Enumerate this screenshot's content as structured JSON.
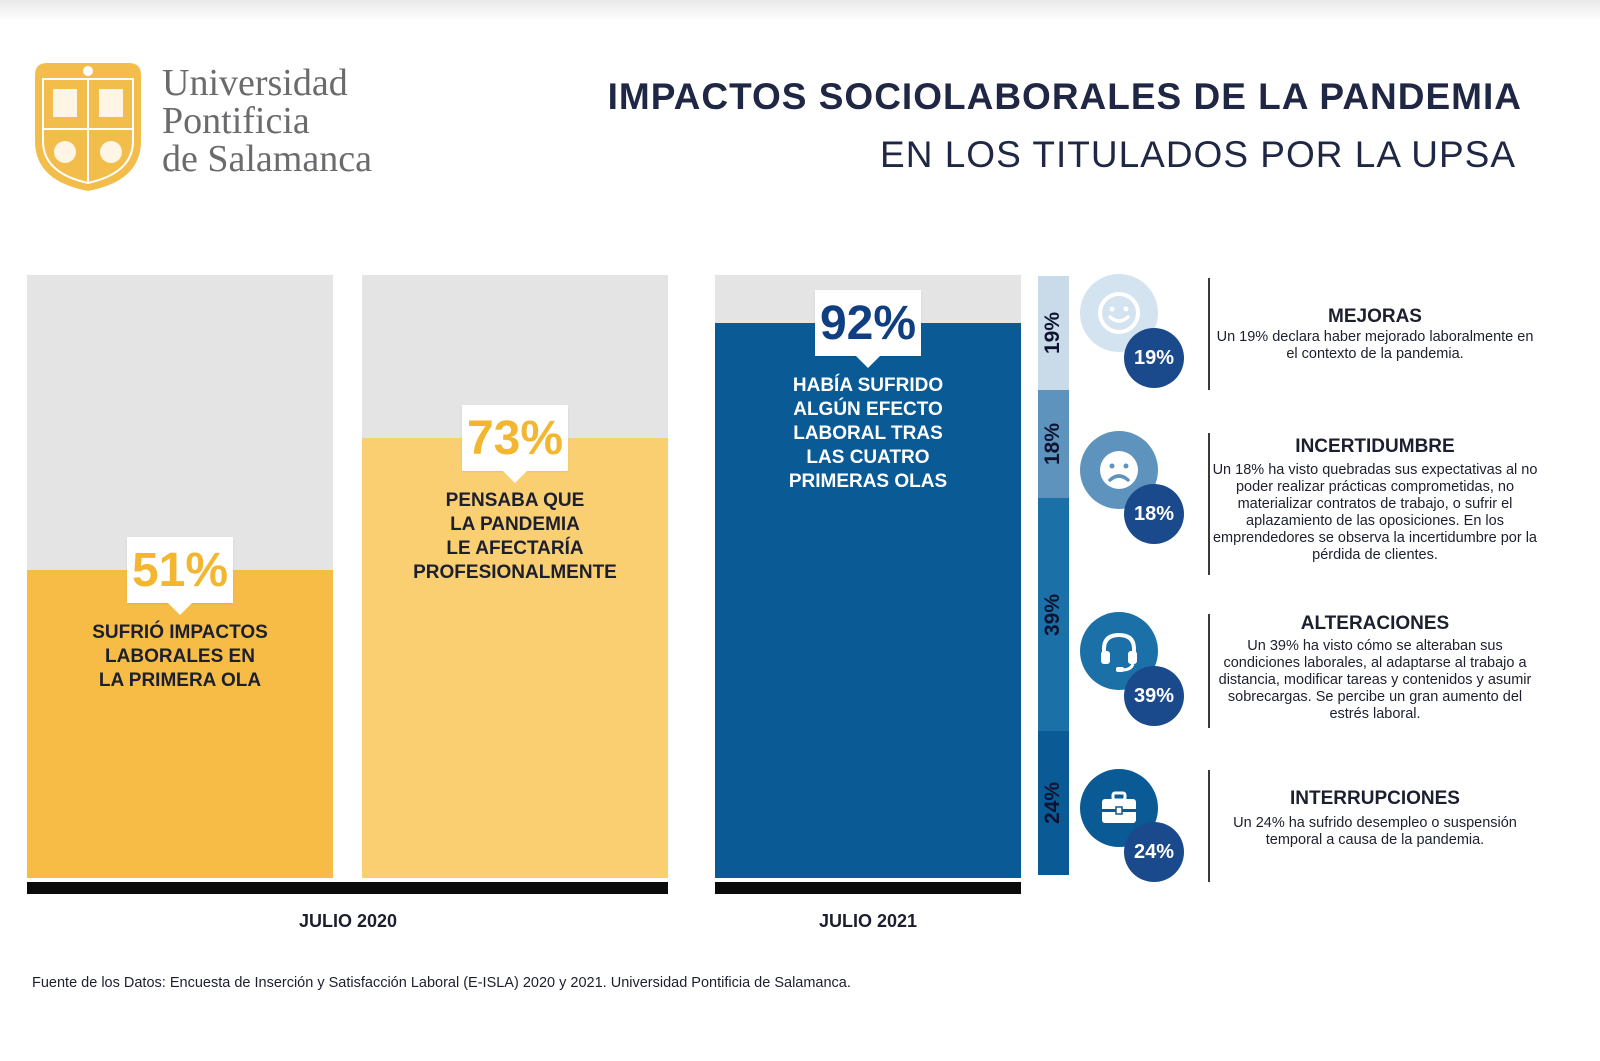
{
  "logo": {
    "name_line1": "Universidad",
    "name_line2": "Pontificia",
    "name_line3": "de Salamanca"
  },
  "header": {
    "title": "IMPACTOS SOCIOLABORALES DE LA PANDEMIA",
    "subtitle": "EN LOS TITULADOS POR LA UPSA"
  },
  "colors": {
    "bar1": "#f6bc46",
    "bar2": "#f9cf72",
    "bar3": "#0a5a96",
    "navy": "#1a4a8c",
    "track": "#e4e4e4"
  },
  "chart_data": {
    "type": "bar",
    "categories": [
      "SUFRIÓ IMPACTOS LABORALES EN LA PRIMERA OLA",
      "PENSABA QUE LA PANDEMIA LE AFECTARÍA PROFESIONALMENTE",
      "HABÍA SUFRIDO ALGÚN EFECTO LABORAL TRAS LAS CUATRO PRIMERAS OLAS"
    ],
    "values": [
      51,
      73,
      92
    ],
    "value_labels": [
      "51%",
      "73%",
      "92%"
    ],
    "periods": [
      "JULIO 2020",
      "JULIO 2020",
      "JULIO 2021"
    ],
    "ylim": [
      0,
      100
    ],
    "bars": [
      {
        "value": 51,
        "label": "51%",
        "desc": "SUFRIÓ IMPACTOS\nLABORALES EN\nLA PRIMERA OLA"
      },
      {
        "value": 73,
        "label": "73%",
        "desc": "PENSABA QUE\nLA PANDEMIA\nLE AFECTARÍA\nPROFESIONALMENTE"
      },
      {
        "value": 92,
        "label": "92%",
        "desc": "HABÍA SUFRIDO\nALGÚN EFECTO\nLABORAL TRAS\nLAS CUATRO\nPRIMERAS OLAS"
      }
    ],
    "period_labels": [
      "JULIO 2020",
      "JULIO 2021"
    ],
    "breakdown": {
      "type": "stacked-bar",
      "segments": [
        {
          "name": "MEJORAS",
          "value": 19,
          "label": "19%",
          "color": "#c9dbe9",
          "icon": "smiley-face-icon",
          "text": "Un 19% declara haber mejorado laboralmente en el contexto de la pandemia."
        },
        {
          "name": "INCERTIDUMBRE",
          "value": 18,
          "label": "18%",
          "color": "#5e93bd",
          "icon": "sad-face-icon",
          "text": "Un 18% ha visto quebradas sus expectativas al no poder realizar prácticas comprometidas, no materializar contratos de trabajo, o sufrir el aplazamiento de las oposiciones. En los emprendedores se observa la incertidumbre por la pérdida de clientes."
        },
        {
          "name": "ALTERACIONES",
          "value": 39,
          "label": "39%",
          "color": "#1c70a8",
          "icon": "headset-icon",
          "text": "Un 39% ha visto cómo se alteraban sus condiciones laborales, al adaptarse al trabajo a distancia, modificar tareas y contenidos y asumir sobrecargas. Se percibe un gran aumento del estrés laboral."
        },
        {
          "name": "INTERRUPCIONES",
          "value": 24,
          "label": "24%",
          "color": "#0a5a96",
          "icon": "briefcase-icon",
          "text": "Un 24% ha sufrido desempleo o suspensión temporal a causa de la pandemia."
        }
      ]
    }
  },
  "footer": {
    "source": "Fuente de los Datos: Encuesta de Inserción y Satisfacción Laboral (E-ISLA) 2020 y 2021. Universidad Pontificia de Salamanca."
  }
}
